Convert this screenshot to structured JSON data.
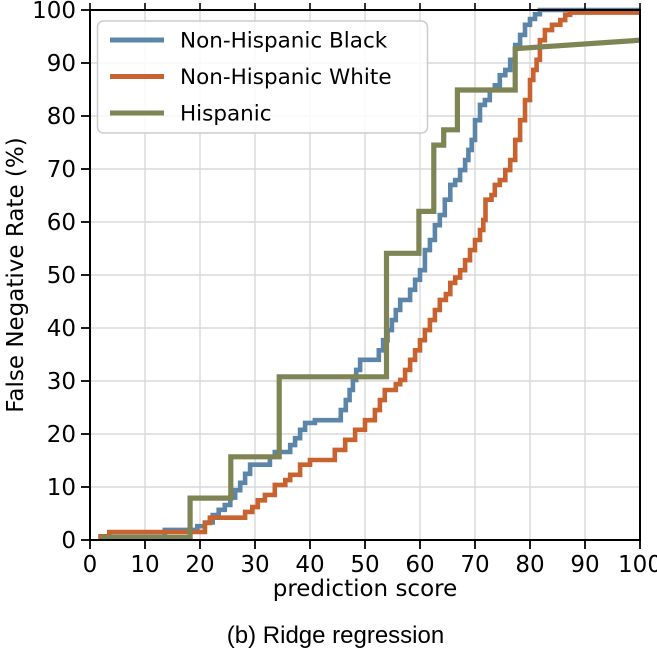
{
  "caption": "(b) Ridge regression",
  "chart_data": {
    "type": "line",
    "subtype": "step-cdf",
    "title": "",
    "xlabel": "prediction score",
    "ylabel": "False Negative Rate (%)",
    "xlim": [
      0,
      100
    ],
    "ylim": [
      0,
      100
    ],
    "xticks": [
      0,
      10,
      20,
      30,
      40,
      50,
      60,
      70,
      80,
      90,
      100
    ],
    "yticks": [
      0,
      10,
      20,
      30,
      40,
      50,
      60,
      70,
      80,
      90,
      100
    ],
    "grid": true,
    "grid_color": "#d8d8d8",
    "legend_position": "upper-left",
    "series": [
      {
        "name": "Non-Hispanic Black",
        "color": "#5b85a9",
        "step": true,
        "points": [
          [
            1.5,
            0.6
          ],
          [
            13.6,
            1.9
          ],
          [
            19.5,
            2.6
          ],
          [
            20.9,
            3.3
          ],
          [
            22.3,
            4.7
          ],
          [
            23.4,
            5.7
          ],
          [
            24.5,
            6.6
          ],
          [
            25.5,
            8.0
          ],
          [
            26.4,
            9.4
          ],
          [
            27.3,
            10.8
          ],
          [
            28.2,
            12.5
          ],
          [
            29.1,
            14.2
          ],
          [
            32.7,
            15.7
          ],
          [
            33.6,
            16.6
          ],
          [
            36.4,
            17.9
          ],
          [
            37.3,
            19.2
          ],
          [
            38.2,
            20.8
          ],
          [
            39.1,
            22.1
          ],
          [
            40.9,
            22.6
          ],
          [
            45.6,
            24.5
          ],
          [
            46.5,
            26.4
          ],
          [
            47.2,
            28.3
          ],
          [
            47.8,
            30.2
          ],
          [
            48.4,
            32.1
          ],
          [
            49.1,
            34.0
          ],
          [
            52.5,
            35.8
          ],
          [
            53.3,
            37.7
          ],
          [
            54.1,
            39.6
          ],
          [
            54.9,
            41.5
          ],
          [
            55.6,
            43.4
          ],
          [
            56.4,
            45.3
          ],
          [
            58.2,
            47.2
          ],
          [
            59.1,
            49.1
          ],
          [
            60.0,
            50.9
          ],
          [
            60.9,
            54.7
          ],
          [
            61.8,
            56.6
          ],
          [
            62.7,
            59.4
          ],
          [
            63.6,
            61.3
          ],
          [
            64.5,
            64.2
          ],
          [
            65.5,
            67.0
          ],
          [
            66.4,
            67.9
          ],
          [
            67.3,
            69.8
          ],
          [
            68.2,
            71.7
          ],
          [
            68.8,
            73.6
          ],
          [
            69.4,
            75.5
          ],
          [
            70.0,
            79.2
          ],
          [
            70.9,
            82.1
          ],
          [
            71.8,
            83.0
          ],
          [
            72.7,
            84.9
          ],
          [
            73.6,
            85.8
          ],
          [
            74.5,
            87.7
          ],
          [
            75.5,
            88.7
          ],
          [
            76.4,
            90.6
          ],
          [
            77.3,
            93.4
          ],
          [
            78.2,
            95.3
          ],
          [
            79.1,
            97.2
          ],
          [
            80.0,
            98.3
          ],
          [
            80.9,
            99.2
          ],
          [
            81.8,
            100.0
          ],
          [
            100.0,
            100.0
          ]
        ]
      },
      {
        "name": "Non-Hispanic White",
        "color": "#c8622f",
        "step": true,
        "points": [
          [
            1.5,
            0.7
          ],
          [
            3.5,
            1.5
          ],
          [
            20.9,
            3.2
          ],
          [
            21.8,
            4.2
          ],
          [
            28.2,
            5.3
          ],
          [
            29.5,
            6.2
          ],
          [
            30.5,
            7.5
          ],
          [
            31.8,
            8.5
          ],
          [
            33.6,
            10.4
          ],
          [
            35.5,
            11.3
          ],
          [
            36.4,
            12.3
          ],
          [
            38.2,
            14.2
          ],
          [
            40.0,
            15.1
          ],
          [
            44.5,
            17.0
          ],
          [
            46.4,
            18.9
          ],
          [
            48.2,
            20.8
          ],
          [
            50.0,
            22.6
          ],
          [
            51.8,
            24.5
          ],
          [
            52.7,
            26.4
          ],
          [
            53.6,
            28.3
          ],
          [
            55.6,
            29.4
          ],
          [
            56.4,
            30.2
          ],
          [
            57.3,
            32.1
          ],
          [
            58.2,
            34.0
          ],
          [
            59.1,
            35.8
          ],
          [
            60.0,
            37.7
          ],
          [
            60.9,
            39.6
          ],
          [
            61.8,
            41.5
          ],
          [
            62.7,
            43.4
          ],
          [
            63.6,
            45.3
          ],
          [
            64.7,
            46.4
          ],
          [
            65.5,
            48.5
          ],
          [
            66.4,
            49.5
          ],
          [
            67.3,
            50.9
          ],
          [
            68.2,
            52.8
          ],
          [
            69.1,
            54.7
          ],
          [
            70.0,
            56.6
          ],
          [
            70.9,
            58.5
          ],
          [
            71.5,
            60.4
          ],
          [
            71.9,
            64.2
          ],
          [
            73.0,
            65.1
          ],
          [
            73.6,
            67.0
          ],
          [
            74.5,
            67.9
          ],
          [
            75.5,
            69.8
          ],
          [
            76.4,
            71.7
          ],
          [
            77.3,
            75.5
          ],
          [
            78.2,
            79.2
          ],
          [
            79.1,
            83.0
          ],
          [
            80.0,
            86.8
          ],
          [
            80.6,
            88.7
          ],
          [
            81.2,
            90.6
          ],
          [
            81.8,
            94.3
          ],
          [
            82.7,
            96.2
          ],
          [
            84.0,
            97.2
          ],
          [
            85.5,
            98.1
          ],
          [
            86.4,
            99.1
          ],
          [
            87.3,
            99.5
          ],
          [
            100.0,
            99.5
          ]
        ]
      },
      {
        "name": "Hispanic",
        "color": "#7e8454",
        "step": false,
        "points": [
          [
            2.0,
            0.5
          ],
          [
            18.2,
            0.5
          ],
          [
            18.2,
            7.9
          ],
          [
            25.6,
            7.9
          ],
          [
            25.6,
            15.7
          ],
          [
            34.4,
            15.7
          ],
          [
            34.4,
            30.8
          ],
          [
            53.9,
            30.8
          ],
          [
            53.9,
            54.1
          ],
          [
            59.8,
            54.1
          ],
          [
            59.8,
            62.0
          ],
          [
            62.5,
            62.0
          ],
          [
            62.5,
            74.5
          ],
          [
            64.3,
            74.5
          ],
          [
            64.3,
            77.4
          ],
          [
            66.8,
            77.4
          ],
          [
            66.8,
            84.9
          ],
          [
            77.3,
            84.9
          ],
          [
            77.3,
            92.7
          ],
          [
            100.0,
            94.3
          ]
        ]
      }
    ]
  }
}
